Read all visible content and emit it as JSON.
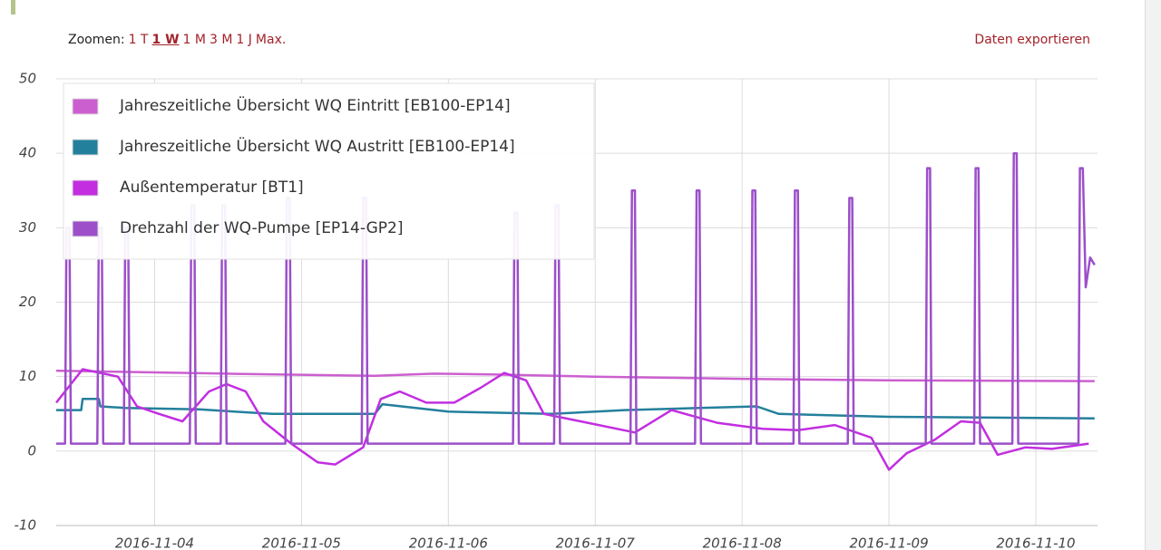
{
  "toolbar": {
    "zoom_label": "Zoomen:",
    "zoom_options": [
      "1 T",
      "1 W",
      "1 M",
      "3 M",
      "1 J",
      "Max."
    ],
    "selected_index": 1,
    "export": "Daten exportieren"
  },
  "chart_data": {
    "type": "line",
    "xlim": [
      3.33,
      10.42
    ],
    "xticks": [
      {
        "value": 4,
        "label": "2016-11-04"
      },
      {
        "value": 5,
        "label": "2016-11-05"
      },
      {
        "value": 6,
        "label": "2016-11-06"
      },
      {
        "value": 7,
        "label": "2016-11-07"
      },
      {
        "value": 8,
        "label": "2016-11-08"
      },
      {
        "value": 9,
        "label": "2016-11-09"
      },
      {
        "value": 10,
        "label": "2016-11-10"
      }
    ],
    "ylim": [
      -10,
      50
    ],
    "yticks": [
      -10,
      0,
      10,
      20,
      30,
      40,
      50
    ],
    "grid": true,
    "legend": "upper left",
    "series": [
      {
        "name": "Jahreszeitliche Übersicht WQ Eintritt [EB100-EP14]",
        "color": "#cc5fcf",
        "x": [
          3.33,
          4.5,
          5.5,
          5.9,
          6.3,
          7,
          8,
          9,
          10.4
        ],
        "values": [
          10.8,
          10.4,
          10.1,
          10.4,
          10.3,
          10.0,
          9.7,
          9.5,
          9.4
        ]
      },
      {
        "name": "Jahreszeitliche Übersicht WQ Austritt [EB100-EP14]",
        "color": "#23809c",
        "x": [
          3.33,
          3.5,
          3.51,
          3.62,
          3.63,
          3.8,
          4.3,
          4.8,
          5.5,
          5.55,
          6.0,
          6.7,
          7.2,
          8.1,
          8.25,
          9.0,
          10.4
        ],
        "values": [
          5.5,
          5.5,
          7,
          7,
          6,
          5.8,
          5.6,
          5.0,
          5.0,
          6.3,
          5.3,
          5.0,
          5.5,
          6.0,
          5.0,
          4.6,
          4.4
        ]
      },
      {
        "name": "Außentemperatur [BT1]",
        "color": "#c22ee0",
        "x": [
          3.33,
          3.51,
          3.75,
          3.88,
          4.03,
          4.19,
          4.37,
          4.49,
          4.62,
          4.74,
          4.93,
          5.11,
          5.23,
          5.42,
          5.54,
          5.67,
          5.85,
          6.04,
          6.22,
          6.38,
          6.53,
          6.65,
          6.9,
          7.27,
          7.52,
          7.83,
          8.14,
          8.38,
          8.63,
          8.88,
          9.0,
          9.12,
          9.31,
          9.49,
          9.62,
          9.74,
          9.93,
          10.11,
          10.36
        ],
        "values": [
          6.5,
          11,
          10,
          6,
          5,
          4,
          8,
          9,
          8,
          4,
          1,
          -1.5,
          -1.8,
          0.5,
          7,
          8,
          6.5,
          6.5,
          8.5,
          10.5,
          9.5,
          5,
          4,
          2.5,
          5.5,
          3.8,
          3,
          2.8,
          3.5,
          1.8,
          -2.5,
          -0.3,
          1.5,
          4,
          3.8,
          -0.5,
          0.5,
          0.3,
          1
        ]
      },
      {
        "name": "Drehzahl der WQ-Pumpe [EP14-GP2]",
        "color": "#9c4fc9",
        "x": [
          3.33,
          3.39,
          3.4,
          3.42,
          3.43,
          3.61,
          3.62,
          3.64,
          3.65,
          3.79,
          3.8,
          3.82,
          3.83,
          4.24,
          4.25,
          4.27,
          4.28,
          4.45,
          4.46,
          4.48,
          4.49,
          4.89,
          4.9,
          4.92,
          4.93,
          5.41,
          5.42,
          5.44,
          5.45,
          6.44,
          6.45,
          6.47,
          6.48,
          6.72,
          6.73,
          6.75,
          6.76,
          7.24,
          7.25,
          7.27,
          7.28,
          7.68,
          7.69,
          7.71,
          7.72,
          8.06,
          8.07,
          8.09,
          8.1,
          8.35,
          8.36,
          8.38,
          8.39,
          8.72,
          8.73,
          8.75,
          8.76,
          9.25,
          9.26,
          9.28,
          9.29,
          9.58,
          9.59,
          9.61,
          9.62,
          9.84,
          9.85,
          9.87,
          9.88,
          10.29,
          10.3,
          10.32,
          10.34,
          10.37,
          10.4
        ],
        "values": [
          1,
          1,
          30,
          30,
          1,
          1,
          30,
          30,
          1,
          1,
          30,
          30,
          1,
          1,
          33,
          33,
          1,
          1,
          33,
          33,
          1,
          1,
          34,
          34,
          1,
          1,
          34,
          34,
          1,
          1,
          32,
          32,
          1,
          1,
          33,
          33,
          1,
          1,
          35,
          35,
          1,
          1,
          35,
          35,
          1,
          1,
          35,
          35,
          1,
          1,
          35,
          35,
          1,
          1,
          34,
          34,
          1,
          1,
          38,
          38,
          1,
          1,
          38,
          38,
          1,
          1,
          40,
          40,
          1,
          1,
          38,
          38,
          22,
          26,
          25
        ]
      }
    ]
  }
}
